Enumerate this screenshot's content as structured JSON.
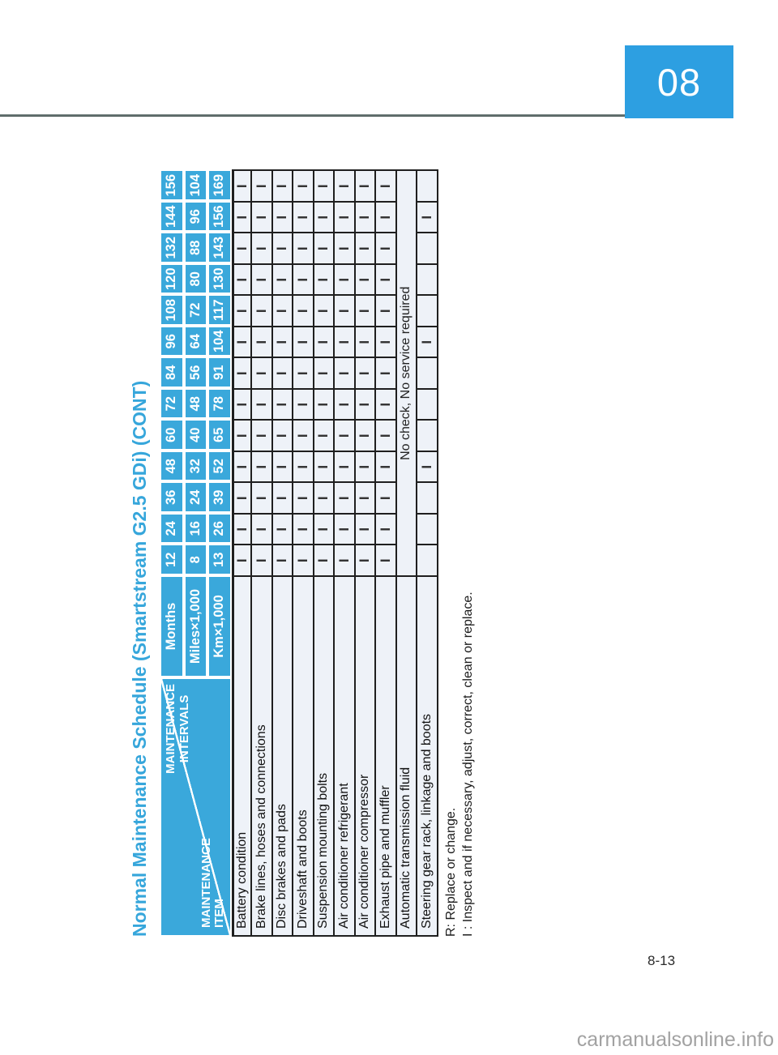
{
  "page": {
    "chapter_badge": "08",
    "page_number": "8-13",
    "watermark": "carmanualsonline.info"
  },
  "title": "Normal Maintenance Schedule (Smartstream G2.5 GDi) (CONT)",
  "footnotes": [
    "R: Replace or change.",
    "I : Inspect and if necessary, adjust, correct, clean or replace."
  ],
  "table": {
    "corner": {
      "intervals_label_lines": [
        "MAINTENANCE",
        "INTERVALS"
      ],
      "item_label_lines": [
        "MAINTENANCE",
        "ITEM"
      ]
    },
    "interval_rows": [
      {
        "label": "Months",
        "values": [
          "12",
          "24",
          "36",
          "48",
          "60",
          "72",
          "84",
          "96",
          "108",
          "120",
          "132",
          "144",
          "156"
        ]
      },
      {
        "label": "Miles×1,000",
        "values": [
          "8",
          "16",
          "24",
          "32",
          "40",
          "48",
          "56",
          "64",
          "72",
          "80",
          "88",
          "96",
          "104"
        ]
      },
      {
        "label": "Km×1,000",
        "values": [
          "13",
          "26",
          "39",
          "52",
          "65",
          "78",
          "91",
          "104",
          "117",
          "130",
          "143",
          "156",
          "169"
        ]
      }
    ],
    "items": [
      {
        "name": "Battery condition",
        "marks": [
          "I",
          "I",
          "I",
          "I",
          "I",
          "I",
          "I",
          "I",
          "I",
          "I",
          "I",
          "I",
          "I"
        ]
      },
      {
        "name": "Brake lines, hoses and connections",
        "marks": [
          "I",
          "I",
          "I",
          "I",
          "I",
          "I",
          "I",
          "I",
          "I",
          "I",
          "I",
          "I",
          "I"
        ]
      },
      {
        "name": "Disc brakes and pads",
        "marks": [
          "I",
          "I",
          "I",
          "I",
          "I",
          "I",
          "I",
          "I",
          "I",
          "I",
          "I",
          "I",
          "I"
        ]
      },
      {
        "name": "Driveshaft and boots",
        "marks": [
          "I",
          "I",
          "I",
          "I",
          "I",
          "I",
          "I",
          "I",
          "I",
          "I",
          "I",
          "I",
          "I"
        ]
      },
      {
        "name": "Suspension mounting bolts",
        "marks": [
          "I",
          "I",
          "I",
          "I",
          "I",
          "I",
          "I",
          "I",
          "I",
          "I",
          "I",
          "I",
          "I"
        ]
      },
      {
        "name": "Air conditioner refrigerant",
        "marks": [
          "I",
          "I",
          "I",
          "I",
          "I",
          "I",
          "I",
          "I",
          "I",
          "I",
          "I",
          "I",
          "I"
        ]
      },
      {
        "name": "Air conditioner compressor",
        "marks": [
          "I",
          "I",
          "I",
          "I",
          "I",
          "I",
          "I",
          "I",
          "I",
          "I",
          "I",
          "I",
          "I"
        ]
      },
      {
        "name": "Exhaust pipe and muffler",
        "marks": [
          "I",
          "I",
          "I",
          "I",
          "I",
          "I",
          "I",
          "I",
          "I",
          "I",
          "I",
          "I",
          "I"
        ]
      },
      {
        "name": "Automatic transmission fluid",
        "note": "No check, No service required"
      },
      {
        "name": "Steering gear rack, linkage and boots",
        "marks": [
          "",
          "",
          "",
          "I",
          "",
          "",
          "",
          "I",
          "",
          "",
          "",
          "I",
          ""
        ]
      }
    ]
  },
  "colors": {
    "accent_blue": "#3aa8db",
    "badge_blue": "#2d9fe1",
    "title_blue": "#36a6db"
  }
}
